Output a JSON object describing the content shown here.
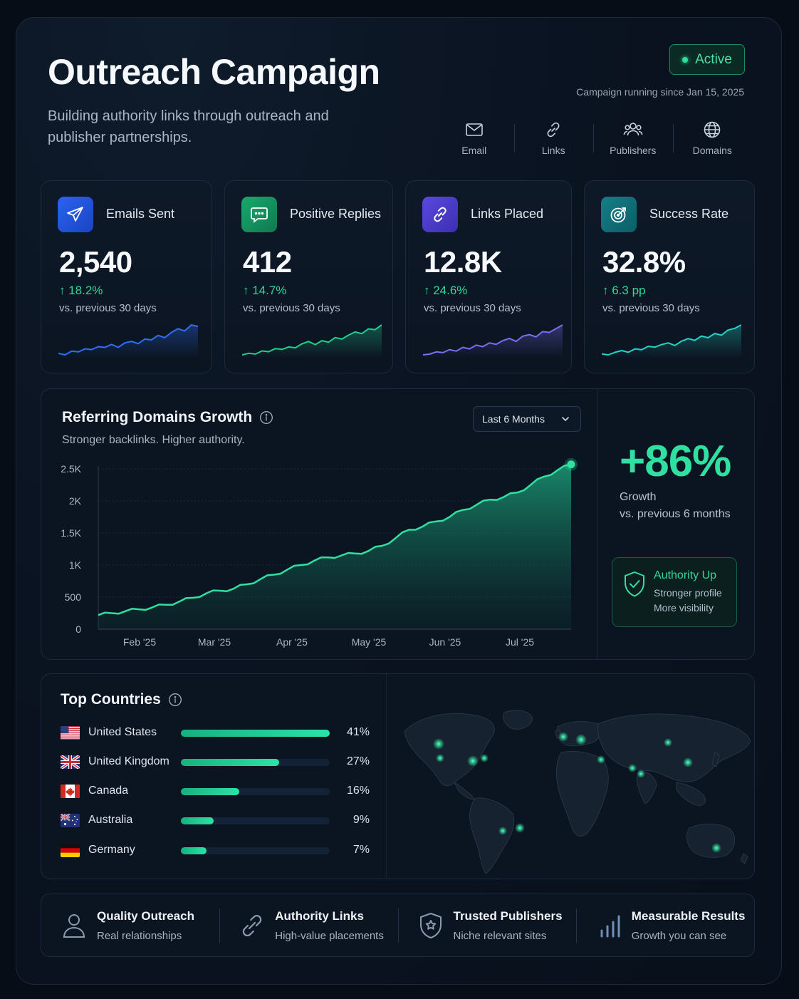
{
  "header": {
    "title": "Outreach Campaign",
    "subtitle": "Building authority links through outreach and publisher partnerships.",
    "status": "Active",
    "running_since": "Campaign running since Jan 15, 2025",
    "channels": [
      {
        "label": "Email",
        "icon": "mail-icon"
      },
      {
        "label": "Links",
        "icon": "link-icon"
      },
      {
        "label": "Publishers",
        "icon": "users-icon"
      },
      {
        "label": "Domains",
        "icon": "globe-icon"
      }
    ]
  },
  "kpis": [
    {
      "label": "Emails Sent",
      "value": "2,540",
      "delta": "↑ 18.2%",
      "note": "vs. previous 30 days",
      "icon": "send-icon",
      "accent": "#2f6ef5",
      "trend": [
        22,
        20,
        25,
        24,
        28,
        27,
        31,
        30,
        34,
        30,
        36,
        38,
        35,
        41,
        40,
        46,
        43,
        50,
        55,
        52,
        60,
        58
      ]
    },
    {
      "label": "Positive Replies",
      "value": "412",
      "delta": "↑ 14.7%",
      "note": "vs. previous 30 days",
      "icon": "chat-icon",
      "accent": "#1fcf8c",
      "trend": [
        20,
        22,
        21,
        25,
        24,
        28,
        27,
        30,
        29,
        34,
        37,
        33,
        38,
        36,
        42,
        40,
        45,
        49,
        47,
        53,
        52,
        58
      ]
    },
    {
      "label": "Links Placed",
      "value": "12.8K",
      "delta": "↑ 24.6%",
      "note": "vs. previous 30 days",
      "icon": "link-icon",
      "accent": "#7c6cf6",
      "trend": [
        20,
        21,
        24,
        23,
        27,
        25,
        30,
        28,
        33,
        31,
        36,
        34,
        39,
        42,
        38,
        45,
        47,
        44,
        51,
        50,
        55,
        60
      ]
    },
    {
      "label": "Success Rate",
      "value": "32.8%",
      "delta": "↑ 6.3 pp",
      "note": "vs. previous 30 days",
      "icon": "target-icon",
      "accent": "#22d3c5",
      "trend": [
        22,
        21,
        24,
        26,
        24,
        28,
        27,
        31,
        30,
        33,
        35,
        32,
        37,
        40,
        38,
        43,
        41,
        46,
        44,
        50,
        52,
        56
      ]
    }
  ],
  "growth": {
    "title": "Referring Domains Growth",
    "subtitle": "Stronger backlinks. Higher authority.",
    "range": "Last 6 Months",
    "big_value": "+86%",
    "label_1": "Growth",
    "label_2": "vs. previous 6 months",
    "authority": {
      "title": "Authority Up",
      "line_1": "Stronger profile",
      "line_2": "More visibility"
    }
  },
  "chart_data": {
    "type": "area",
    "title": "Referring Domains Growth",
    "ylim": [
      0,
      2500
    ],
    "yticks": [
      "0",
      "500",
      "1K",
      "1.5K",
      "2K",
      "2.5K"
    ],
    "ytick_values": [
      0,
      500,
      1000,
      1500,
      2000,
      2500
    ],
    "xticks": [
      "Feb '25",
      "Mar '25",
      "Apr '25",
      "May '25",
      "Jun '25",
      "Jul '25"
    ],
    "series": [
      {
        "values": [
          220,
          250,
          280,
          310,
          340,
          380,
          430,
          490,
          560,
          600,
          630,
          700,
          780,
          850,
          930,
          1000,
          1070,
          1120,
          1150,
          1180,
          1220,
          1300,
          1420,
          1550,
          1600,
          1680,
          1750,
          1860,
          1940,
          2020,
          2060,
          2130,
          2250,
          2380,
          2480,
          2570
        ]
      }
    ],
    "grid": true,
    "accent": "#2fe0a0"
  },
  "countries": {
    "title": "Top Countries",
    "items": [
      {
        "name": "United States",
        "pct_label": "41%",
        "pct": 41,
        "flag": "us-flag-icon"
      },
      {
        "name": "United Kingdom",
        "pct_label": "27%",
        "pct": 27,
        "flag": "uk-flag-icon"
      },
      {
        "name": "Canada",
        "pct_label": "16%",
        "pct": 16,
        "flag": "canada-flag-icon"
      },
      {
        "name": "Australia",
        "pct_label": "9%",
        "pct": 9,
        "flag": "australia-flag-icon"
      },
      {
        "name": "Germany",
        "pct_label": "7%",
        "pct": 7,
        "flag": "germany-flag-icon"
      }
    ]
  },
  "features": [
    {
      "title": "Quality Outreach",
      "sub": "Real relationships",
      "icon": "user-icon"
    },
    {
      "title": "Authority Links",
      "sub": "High-value placements",
      "icon": "link-icon"
    },
    {
      "title": "Trusted Publishers",
      "sub": "Niche relevant sites",
      "icon": "shield-star-icon"
    },
    {
      "title": "Measurable Results",
      "sub": "Growth you can see",
      "icon": "bar-chart-icon"
    }
  ]
}
